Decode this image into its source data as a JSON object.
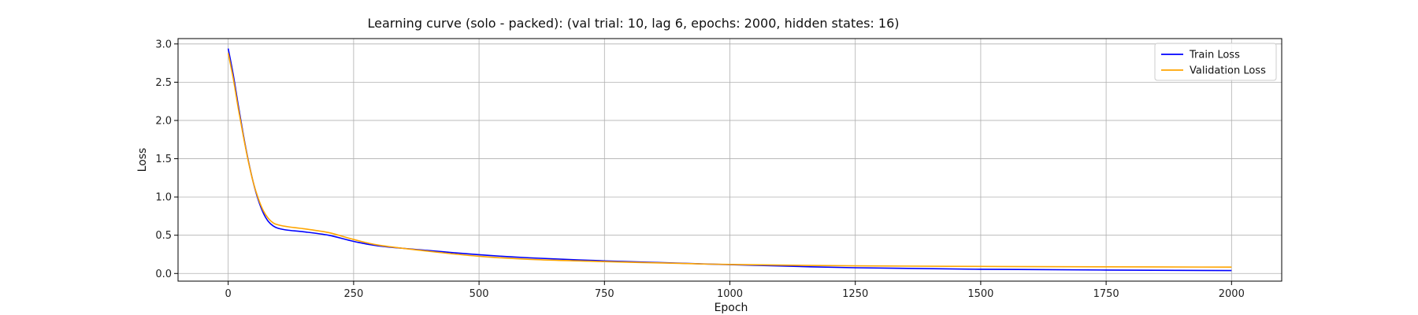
{
  "chart_data": {
    "type": "line",
    "title": "Learning curve (solo - packed): (val trial: 10, lag 6, epochs: 2000, hidden states: 16)",
    "xlabel": "Epoch",
    "ylabel": "Loss",
    "xlim": [
      -100,
      2100
    ],
    "ylim": [
      -0.1,
      3.07
    ],
    "xticks": [
      0,
      250,
      500,
      750,
      1000,
      1250,
      1500,
      1750,
      2000
    ],
    "xtick_labels": [
      "0",
      "250",
      "500",
      "750",
      "1000",
      "1250",
      "1500",
      "1750",
      "2000"
    ],
    "yticks": [
      0.0,
      0.5,
      1.0,
      1.5,
      2.0,
      2.5,
      3.0
    ],
    "ytick_labels": [
      "0.0",
      "0.5",
      "1.0",
      "1.5",
      "2.0",
      "2.5",
      "3.0"
    ],
    "grid": true,
    "legend_position": "top-right",
    "series": [
      {
        "name": "Train Loss",
        "color": "#0000ff",
        "x": [
          0,
          10,
          20,
          30,
          40,
          50,
          60,
          70,
          80,
          90,
          100,
          120,
          150,
          200,
          250,
          300,
          400,
          500,
          600,
          750,
          900,
          1000,
          1250,
          1500,
          1750,
          2000
        ],
        "y": [
          2.94,
          2.6,
          2.2,
          1.82,
          1.48,
          1.19,
          0.96,
          0.79,
          0.68,
          0.62,
          0.59,
          0.565,
          0.545,
          0.5,
          0.42,
          0.36,
          0.3,
          0.245,
          0.205,
          0.165,
          0.135,
          0.115,
          0.075,
          0.055,
          0.045,
          0.038
        ]
      },
      {
        "name": "Validation Loss",
        "color": "#ffa500",
        "x": [
          0,
          10,
          20,
          30,
          40,
          50,
          60,
          70,
          80,
          90,
          100,
          120,
          150,
          200,
          250,
          300,
          400,
          500,
          600,
          750,
          900,
          1000,
          1250,
          1500,
          1750,
          2000
        ],
        "y": [
          2.88,
          2.55,
          2.16,
          1.8,
          1.47,
          1.19,
          0.98,
          0.82,
          0.72,
          0.66,
          0.635,
          0.61,
          0.585,
          0.535,
          0.445,
          0.37,
          0.29,
          0.225,
          0.185,
          0.155,
          0.132,
          0.118,
          0.1,
          0.092,
          0.087,
          0.083
        ]
      }
    ]
  }
}
